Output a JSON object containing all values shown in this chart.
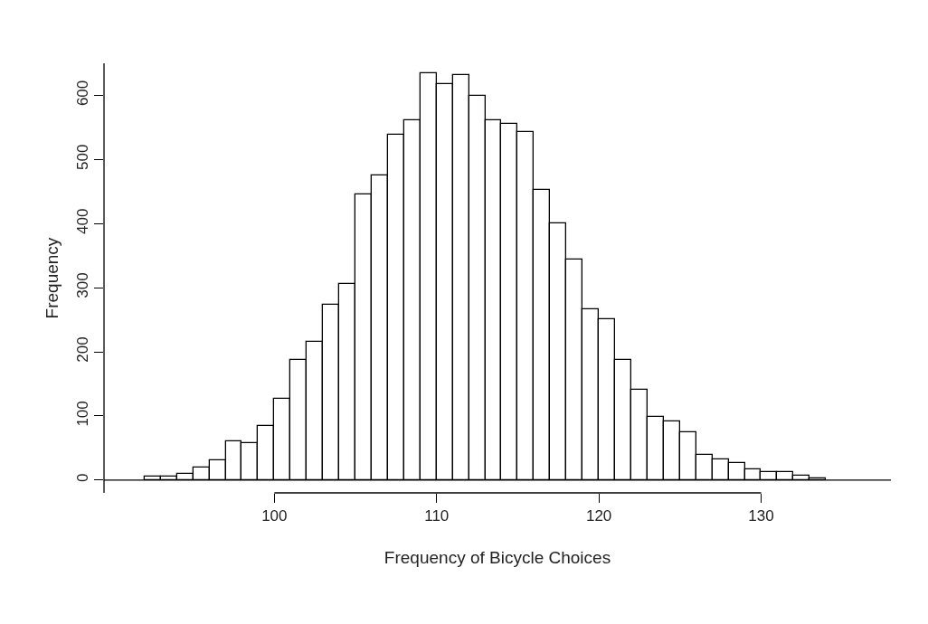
{
  "chart_data": {
    "type": "histogram",
    "xlabel": "Frequency of Bicycle Choices",
    "ylabel": "Frequency",
    "bins": [
      92,
      93,
      94,
      95,
      96,
      97,
      98,
      99,
      100,
      101,
      102,
      103,
      104,
      105,
      106,
      107,
      108,
      109,
      110,
      111,
      112,
      113,
      114,
      115,
      116,
      117,
      118,
      119,
      120,
      121,
      122,
      123,
      124,
      125,
      126,
      127,
      128,
      129,
      130,
      131,
      132,
      133,
      134
    ],
    "values": [
      5,
      5,
      10,
      19,
      31,
      60,
      57,
      85,
      127,
      188,
      216,
      274,
      306,
      446,
      475,
      539,
      561,
      635,
      618,
      631,
      599,
      561,
      556,
      543,
      452,
      400,
      344,
      267,
      251,
      188,
      141,
      98,
      91,
      74,
      39,
      32,
      27,
      16,
      13,
      13,
      7,
      3
    ],
    "color": "#ffffff",
    "xlim": [
      89.5,
      138
    ],
    "xticks": [
      100,
      110,
      120,
      130
    ],
    "ylim": [
      -20,
      650
    ],
    "yticks": [
      0,
      100,
      200,
      300,
      400,
      500,
      600
    ],
    "ref_lines": [
      {
        "axis": "y",
        "value": 0,
        "color": "#000000"
      }
    ]
  }
}
